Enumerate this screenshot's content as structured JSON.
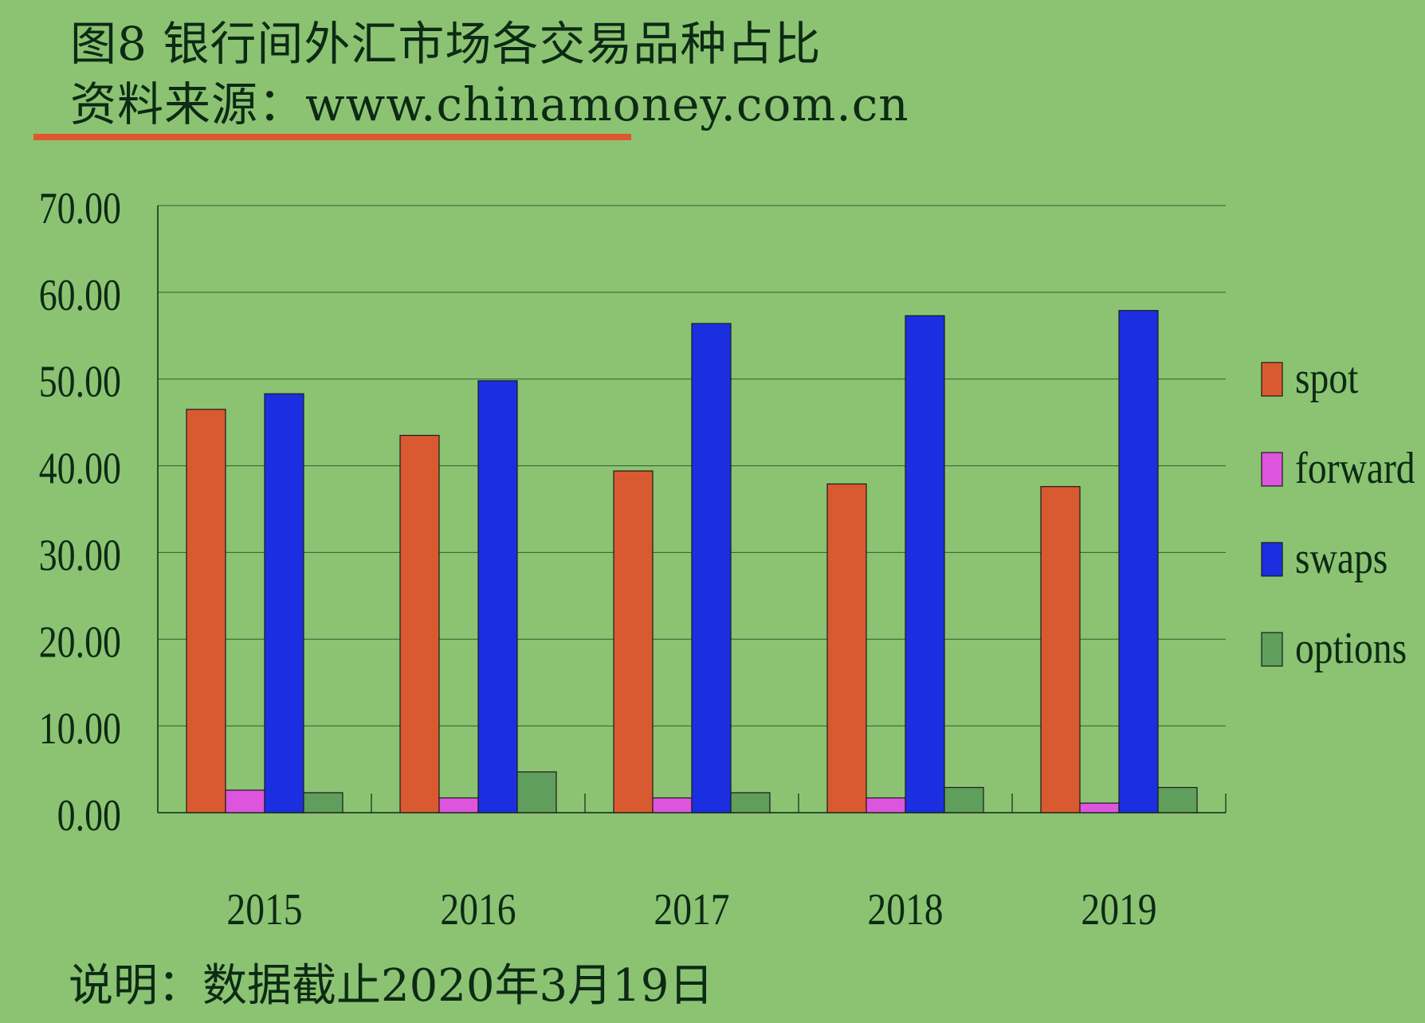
{
  "header": {
    "title": "图8 银行间外汇市场各交易品种占比",
    "source": "资料来源：www.chinamoney.com.cn"
  },
  "footer": {
    "note": "说明：数据截止2020年3月19日"
  },
  "colors": {
    "background": "#8bc373",
    "accent_rule": "#e0562e",
    "spot": "#d95a30",
    "forward": "#dd55dd",
    "swaps": "#1b2fe0",
    "options": "#5f9e5d"
  },
  "chart_data": {
    "type": "bar",
    "categories": [
      "2015",
      "2016",
      "2017",
      "2018",
      "2019"
    ],
    "series": [
      {
        "name": "spot",
        "values": [
          46.5,
          43.5,
          39.4,
          37.9,
          37.6
        ]
      },
      {
        "name": "forward",
        "values": [
          2.6,
          1.7,
          1.7,
          1.7,
          1.1
        ]
      },
      {
        "name": "swaps",
        "values": [
          48.3,
          49.8,
          56.4,
          57.3,
          57.9
        ]
      },
      {
        "name": "options",
        "values": [
          2.3,
          4.7,
          2.3,
          2.9,
          2.9
        ]
      }
    ],
    "yticks": [
      "0.00",
      "10.00",
      "20.00",
      "30.00",
      "40.00",
      "50.00",
      "60.00",
      "70.00"
    ],
    "ylim": [
      0,
      70
    ],
    "grid": true,
    "legend_position": "right"
  }
}
